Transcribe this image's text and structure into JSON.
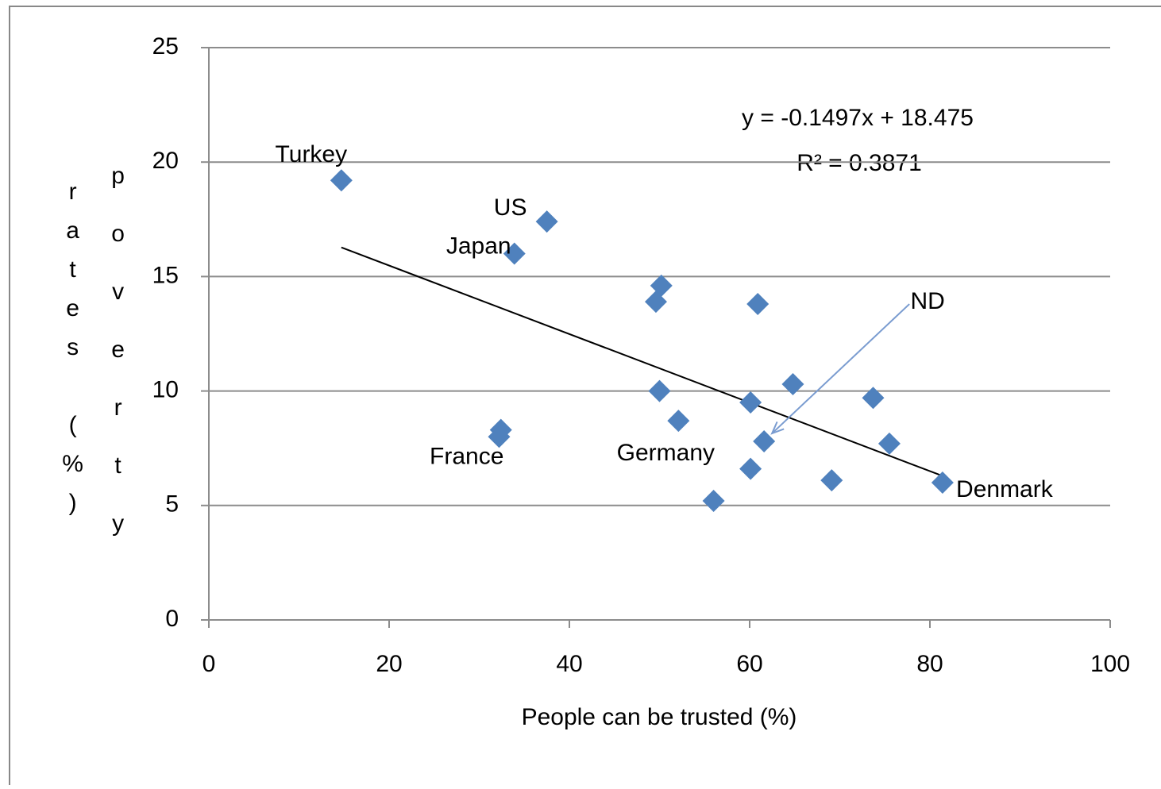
{
  "chart_data": {
    "type": "scatter",
    "xlabel": "People can be trusted (%)",
    "ylabel": [
      "poverty",
      "rates (%)"
    ],
    "xlim": [
      0,
      100
    ],
    "ylim": [
      0,
      25
    ],
    "xticks": [
      0,
      20,
      40,
      60,
      80,
      100
    ],
    "yticks": [
      0,
      5,
      10,
      15,
      20,
      25
    ],
    "grid": true,
    "color": "#4f81bd",
    "x": [
      14.7,
      37.5,
      33.9,
      50.2,
      49.6,
      60.9,
      64.8,
      50.0,
      60.1,
      73.7,
      52.1,
      32.4,
      32.2,
      61.6,
      75.5,
      60.1,
      69.1,
      81.4,
      56.0
    ],
    "y": [
      19.2,
      17.4,
      16.0,
      14.6,
      13.9,
      13.8,
      10.3,
      10.0,
      9.5,
      9.7,
      8.7,
      8.3,
      8.0,
      7.8,
      7.7,
      6.6,
      6.1,
      6.0,
      5.2
    ],
    "point_labels": [
      "Turkey",
      "US",
      "Japan",
      null,
      null,
      null,
      null,
      null,
      null,
      null,
      "Germany",
      "France",
      null,
      "ND",
      null,
      null,
      null,
      "Denmark",
      null
    ],
    "trendline": {
      "slope": -0.1497,
      "intercept": 18.475,
      "color": "#000000",
      "equation": "y = -0.1497x + 18.475",
      "r2": "R² = 0.3871"
    }
  }
}
